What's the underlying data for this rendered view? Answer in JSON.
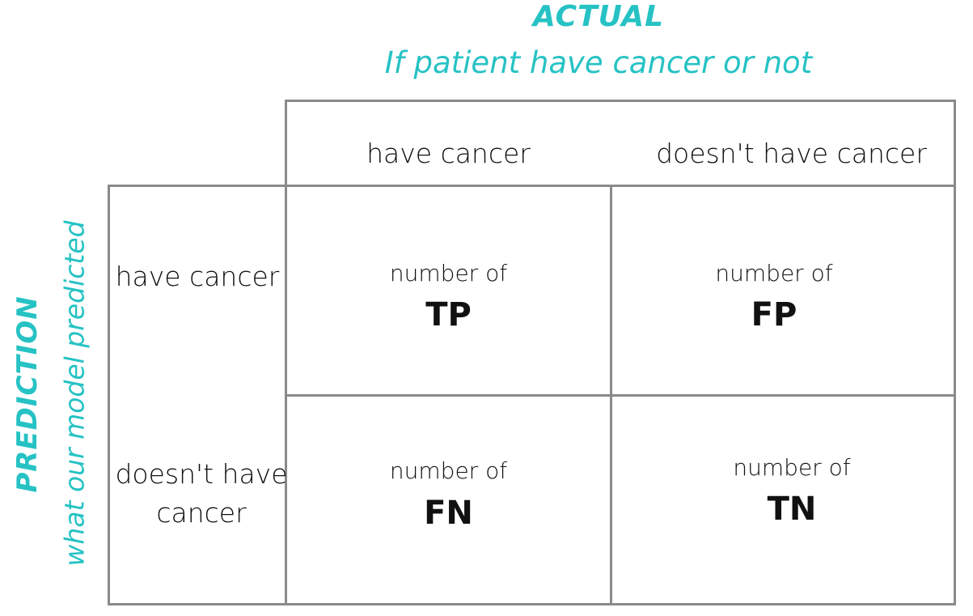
{
  "actual": {
    "title": "ACTUAL",
    "subtitle": "If patient have cancer or not"
  },
  "prediction": {
    "title": "PREDICTION",
    "subtitle": "what our model predicted"
  },
  "columns": [
    "have cancer",
    "doesn't have cancer"
  ],
  "rows": [
    "have cancer",
    "doesn't have\ncancer"
  ],
  "cells": [
    {
      "prefix": "number of",
      "label": "TP"
    },
    {
      "prefix": "number of",
      "label": "FP"
    },
    {
      "prefix": "number of",
      "label": "FN"
    },
    {
      "prefix": "number of",
      "label": "TN"
    }
  ],
  "colors": {
    "accent": "#26c2c4",
    "grid": "#8a8a8a",
    "text": "#111111"
  }
}
